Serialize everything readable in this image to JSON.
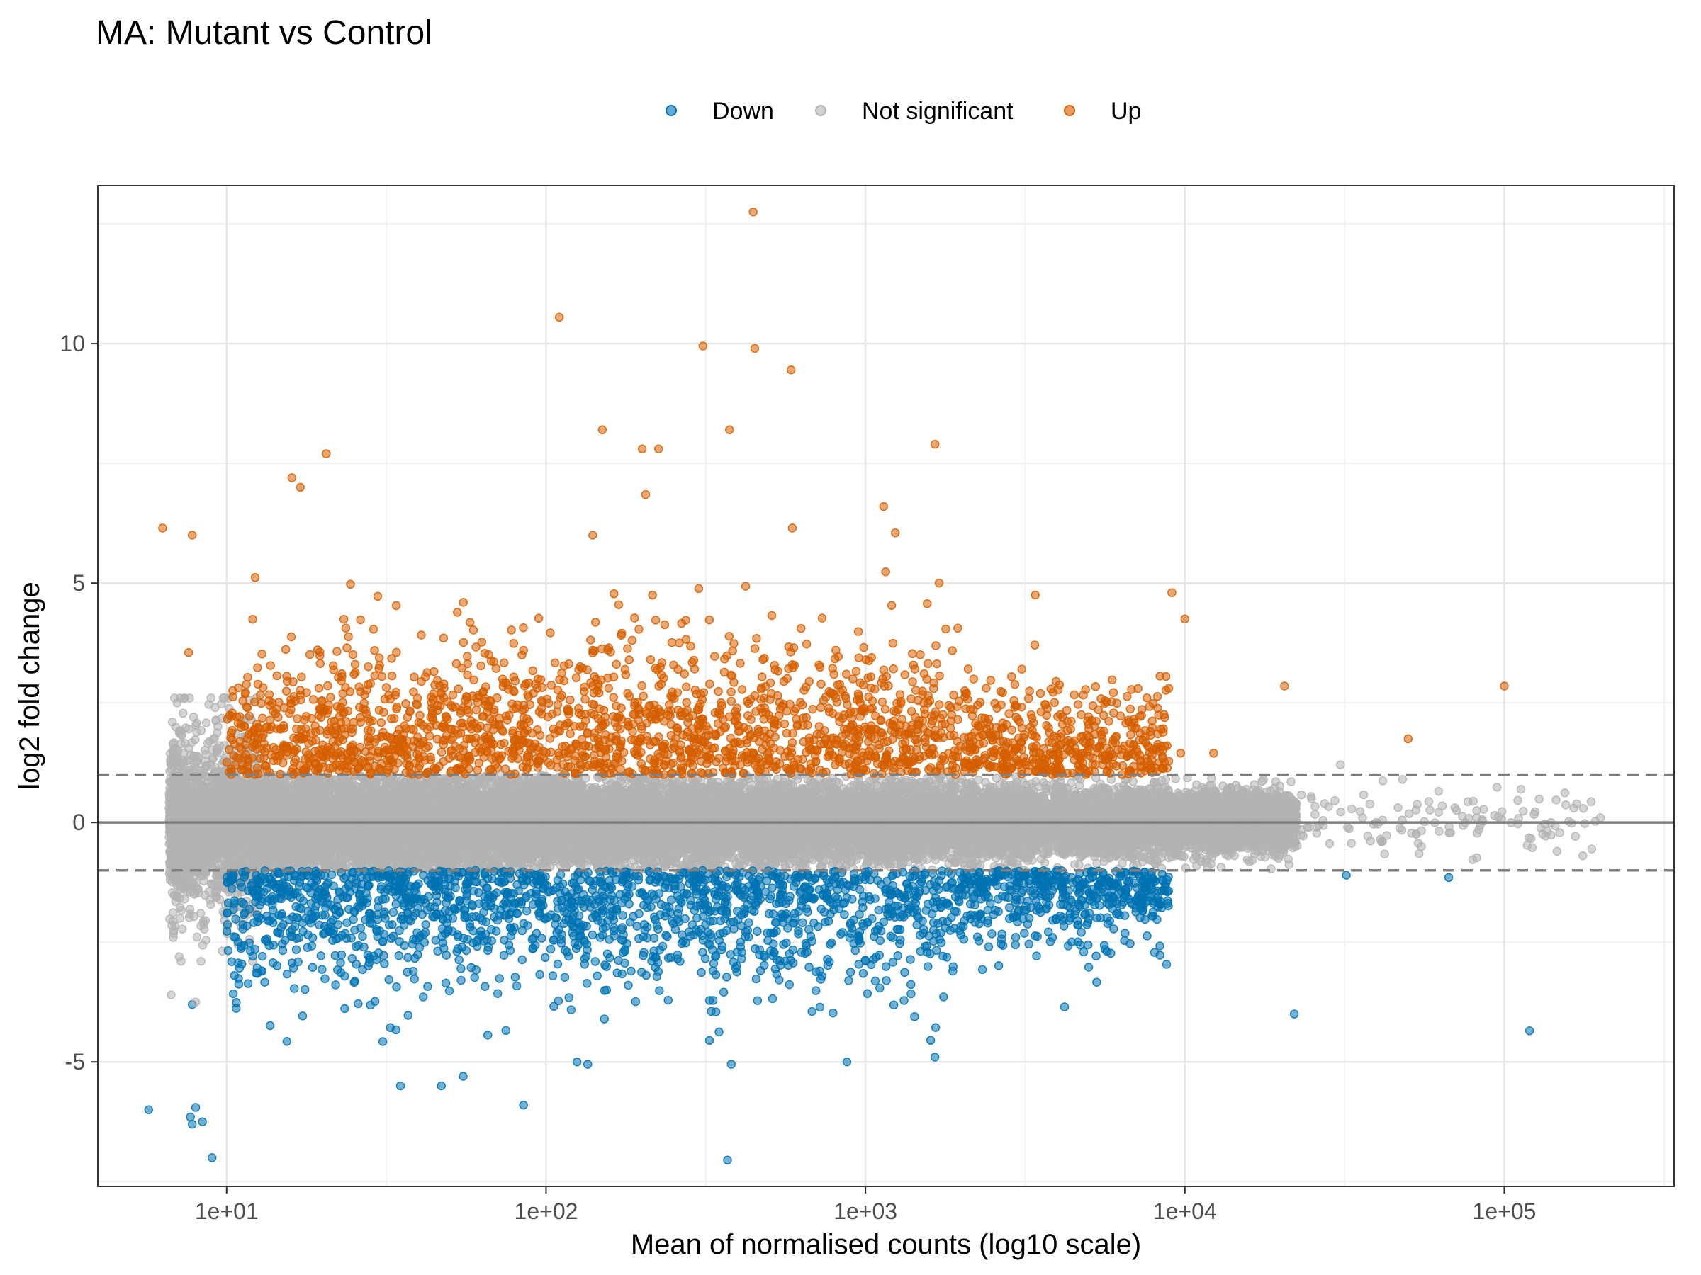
{
  "chart_data": {
    "type": "scatter",
    "title": "MA: Mutant vs Control",
    "xlabel": "Mean of normalised counts (log10 scale)",
    "ylabel": "log2 fold change",
    "x_scale": "log10",
    "xlim": [
      3.95,
      340000
    ],
    "ylim": [
      -7.6,
      13.3
    ],
    "x_ticks": [
      10,
      100,
      1000,
      10000,
      100000
    ],
    "x_tick_labels": [
      "1e+01",
      "1e+02",
      "1e+03",
      "1e+04",
      "1e+05"
    ],
    "y_ticks": [
      -5,
      0,
      5,
      10
    ],
    "y_tick_labels": [
      "-5",
      "0",
      "5",
      "10"
    ],
    "hlines": [
      {
        "y": 0,
        "style": "solid"
      },
      {
        "y": 1,
        "style": "dashed"
      },
      {
        "y": -1,
        "style": "dashed"
      }
    ],
    "grid": true,
    "legend_position": "top",
    "colors": {
      "Down": "#0072B2",
      "Not significant": "#B3B3B3",
      "Up": "#D55E00"
    },
    "series": [
      {
        "name": "Down",
        "color": "#0072B2"
      },
      {
        "name": "Not significant",
        "color": "#B3B3B3"
      },
      {
        "name": "Up",
        "color": "#D55E00"
      }
    ],
    "highlighted_points": {
      "Up": [
        [
          6.3,
          6.15
        ],
        [
          7.8,
          6.0
        ],
        [
          7.6,
          3.55
        ],
        [
          16,
          7.2
        ],
        [
          17,
          7.0
        ],
        [
          20.5,
          7.7
        ],
        [
          110,
          10.55
        ],
        [
          150,
          8.2
        ],
        [
          140,
          6.0
        ],
        [
          200,
          7.8
        ],
        [
          225,
          7.8
        ],
        [
          205,
          6.85
        ],
        [
          310,
          9.95
        ],
        [
          375,
          8.2
        ],
        [
          445,
          12.75
        ],
        [
          450,
          9.9
        ],
        [
          585,
          9.45
        ],
        [
          590,
          6.15
        ],
        [
          1140,
          6.6
        ],
        [
          1240,
          6.05
        ],
        [
          1650,
          7.9
        ],
        [
          1700,
          5.0
        ],
        [
          3400,
          4.75
        ],
        [
          9100,
          4.8
        ],
        [
          100000,
          2.85
        ],
        [
          50000,
          1.75
        ],
        [
          20500,
          2.85
        ],
        [
          10000,
          4.25
        ],
        [
          9700,
          1.45
        ],
        [
          12300,
          1.45
        ]
      ],
      "Down": [
        [
          5.7,
          -6.0
        ],
        [
          7.7,
          -6.15
        ],
        [
          7.8,
          -6.3
        ],
        [
          8.4,
          -6.25
        ],
        [
          8.0,
          -5.95
        ],
        [
          9.0,
          -7.0
        ],
        [
          7.8,
          -3.8
        ],
        [
          35,
          -5.5
        ],
        [
          47,
          -5.5
        ],
        [
          55,
          -5.3
        ],
        [
          85,
          -5.9
        ],
        [
          125,
          -5.0
        ],
        [
          135,
          -5.05
        ],
        [
          370,
          -7.05
        ],
        [
          380,
          -5.05
        ],
        [
          875,
          -5.0
        ],
        [
          1600,
          -4.55
        ],
        [
          4200,
          -3.85
        ],
        [
          22000,
          -4.0
        ],
        [
          120000,
          -4.35
        ],
        [
          67000,
          -1.15
        ],
        [
          32000,
          -1.1
        ]
      ],
      "Not significant": [
        [
          6.6,
          0.3
        ],
        [
          6.7,
          -3.6
        ],
        [
          7.0,
          2.5
        ],
        [
          8.0,
          -3.75
        ],
        [
          9.2,
          2.4
        ],
        [
          200000,
          0.1
        ],
        [
          165000,
          0.3
        ],
        [
          140000,
          0.0
        ],
        [
          105000,
          0.0
        ],
        [
          82000,
          0.25
        ],
        [
          55000,
          -0.5
        ],
        [
          48000,
          0.9
        ],
        [
          36000,
          0.1
        ]
      ]
    },
    "cloud_summary": {
      "Not significant": {
        "x_range": [
          6.3,
          210000
        ],
        "y_band": [
          -1.0,
          1.0
        ],
        "spread_low_x": 2.6,
        "approx_count": 18000
      },
      "Up": {
        "x_range": [
          7,
          50000
        ],
        "y_min": 1.0,
        "typical_max": 4.5,
        "approx_count": 2300
      },
      "Down": {
        "x_range": [
          8,
          70000
        ],
        "y_max": -1.0,
        "typical_min": -4.0,
        "approx_count": 2200
      }
    }
  }
}
